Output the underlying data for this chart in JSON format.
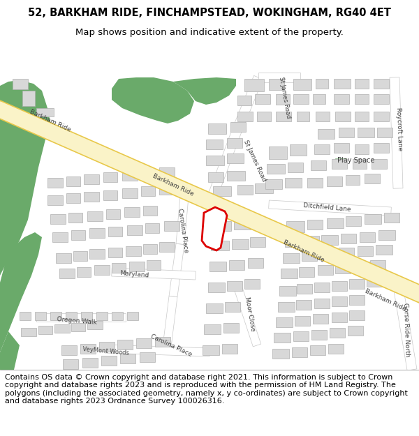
{
  "title_line1": "52, BARKHAM RIDE, FINCHAMPSTEAD, WOKINGHAM, RG40 4ET",
  "title_line2": "Map shows position and indicative extent of the property.",
  "copyright_text": "Contains OS data © Crown copyright and database right 2021. This information is subject to Crown copyright and database rights 2023 and is reproduced with the permission of HM Land Registry. The polygons (including the associated geometry, namely x, y co-ordinates) are subject to Crown copyright and database rights 2023 Ordnance Survey 100026316.",
  "map_bg": "#f7f6f1",
  "road_main_fill": "#faf3c8",
  "road_main_edge": "#e8c84a",
  "road_minor_fill": "#ffffff",
  "road_minor_edge": "#c8c8c8",
  "green_fill": "#6aaa6a",
  "play_fill": "#c8e8c0",
  "play_edge": "#90ba90",
  "building_fill": "#d8d8d8",
  "building_edge": "#b0b0b0",
  "plot_edge": "#dd0000",
  "plot_fill": "#ffffff",
  "title_fontsize": 10.5,
  "subtitle_fontsize": 9.5,
  "footer_fontsize": 8.0,
  "label_fontsize": 6.5,
  "label_color": "#404040"
}
